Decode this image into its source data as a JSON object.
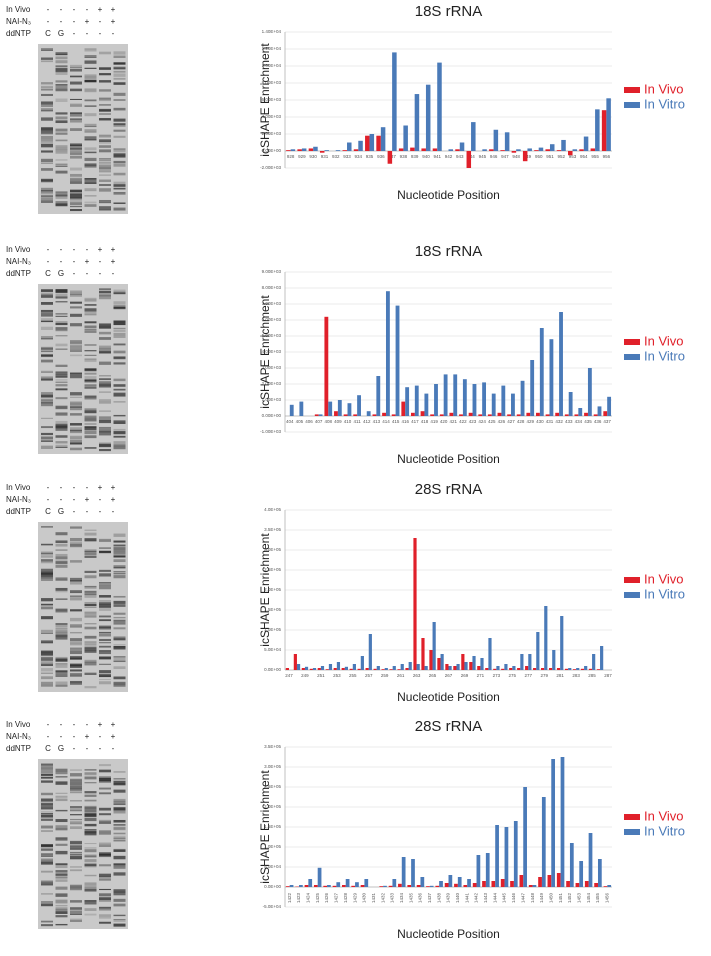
{
  "chart_data": [
    {
      "type": "bar",
      "title": "18S rRNA",
      "x_label": "Nucleotide Position",
      "y_label": "icSHAPE Enrichment",
      "legend": "right",
      "grid": true,
      "categories": [
        "928",
        "929",
        "930",
        "931",
        "932",
        "933",
        "934",
        "935",
        "936",
        "937",
        "938",
        "939",
        "940",
        "941",
        "942",
        "943",
        "944",
        "945",
        "946",
        "947",
        "948",
        "949",
        "950",
        "951",
        "952",
        "953",
        "954",
        "955",
        "956"
      ],
      "series": [
        {
          "name": "In Vivo",
          "color": "#e0202a",
          "values": [
            100,
            200,
            300,
            -200,
            0,
            100,
            200,
            1800,
            1800,
            -1500,
            300,
            400,
            300,
            300,
            0,
            200,
            -2000,
            0,
            200,
            100,
            -200,
            -1200,
            100,
            200,
            100,
            -500,
            200,
            300,
            4800
          ]
        },
        {
          "name": "In Vitro",
          "color": "#4a7ab8",
          "values": [
            200,
            300,
            500,
            100,
            100,
            1000,
            1200,
            2000,
            2800,
            11600,
            3000,
            6700,
            7800,
            10400,
            200,
            1000,
            3400,
            200,
            2500,
            2200,
            200,
            300,
            400,
            800,
            1300,
            200,
            1700,
            4900,
            6200
          ]
        }
      ],
      "ylim": [
        -2000,
        14000
      ],
      "yticks": [
        {
          "value": -2000,
          "label": "-2.00E+03"
        },
        {
          "value": 0,
          "label": "0.00E+00"
        },
        {
          "value": 2000,
          "label": "2.00E+03"
        },
        {
          "value": 4000,
          "label": "4.00E+03"
        },
        {
          "value": 6000,
          "label": "6.00E+03"
        },
        {
          "value": 8000,
          "label": "8.00E+03"
        },
        {
          "value": 10000,
          "label": "1.00E+04"
        },
        {
          "value": 12000,
          "label": "1.20E+04"
        },
        {
          "value": 14000,
          "label": "1.40E+04"
        }
      ]
    },
    {
      "type": "bar",
      "title": "18S rRNA",
      "x_label": "Nucleotide Position",
      "y_label": "icSHAPE Enrichment",
      "legend": "right",
      "grid": true,
      "categories": [
        "404",
        "405",
        "406",
        "407",
        "408",
        "409",
        "410",
        "411",
        "412",
        "413",
        "414",
        "415",
        "416",
        "417",
        "418",
        "419",
        "420",
        "421",
        "422",
        "423",
        "424",
        "425",
        "426",
        "427",
        "428",
        "429",
        "430",
        "431",
        "432",
        "433",
        "434",
        "435",
        "436",
        "437"
      ],
      "series": [
        {
          "name": "In Vivo",
          "color": "#e0202a",
          "values": [
            0,
            0,
            0,
            100,
            6200,
            300,
            100,
            100,
            0,
            100,
            200,
            100,
            900,
            200,
            300,
            100,
            100,
            200,
            100,
            200,
            100,
            100,
            200,
            100,
            100,
            200,
            200,
            100,
            200,
            100,
            100,
            200,
            100,
            300
          ]
        },
        {
          "name": "In Vitro",
          "color": "#4a7ab8",
          "values": [
            700,
            900,
            0,
            100,
            900,
            1000,
            800,
            1300,
            300,
            2500,
            7800,
            6900,
            1800,
            1900,
            1400,
            2000,
            2600,
            2600,
            2300,
            2000,
            2100,
            1400,
            1900,
            1400,
            2200,
            3500,
            5500,
            4800,
            6500,
            1500,
            500,
            3000,
            600,
            1200
          ]
        }
      ],
      "ylim": [
        -1000,
        9000
      ],
      "yticks": [
        {
          "value": -1000,
          "label": "-1.00E+03"
        },
        {
          "value": 0,
          "label": "0.00E+00"
        },
        {
          "value": 1000,
          "label": "1.00E+03"
        },
        {
          "value": 2000,
          "label": "2.00E+03"
        },
        {
          "value": 3000,
          "label": "3.00E+03"
        },
        {
          "value": 4000,
          "label": "4.00E+03"
        },
        {
          "value": 5000,
          "label": "5.00E+03"
        },
        {
          "value": 6000,
          "label": "6.00E+03"
        },
        {
          "value": 7000,
          "label": "7.00E+03"
        },
        {
          "value": 8000,
          "label": "8.00E+03"
        },
        {
          "value": 9000,
          "label": "9.00E+03"
        }
      ]
    },
    {
      "type": "bar",
      "title": "28S rRNA",
      "x_label": "Nucleotide Position",
      "y_label": "icSHAPE Enrichment",
      "legend": "right",
      "grid": true,
      "categories": [
        "247",
        null,
        "249",
        null,
        "251",
        null,
        "253",
        null,
        "255",
        null,
        "257",
        null,
        "259",
        null,
        "261",
        null,
        "263",
        null,
        "265",
        null,
        "267",
        null,
        "269",
        null,
        "271",
        null,
        "273",
        null,
        "275",
        null,
        "277",
        null,
        "279",
        null,
        "281",
        null,
        "283",
        null,
        "285",
        null,
        "287"
      ],
      "series": [
        {
          "name": "In Vivo",
          "color": "#e0202a",
          "values": [
            5000,
            40000,
            5000,
            3000,
            5000,
            2000,
            5000,
            5000,
            3000,
            3000,
            5000,
            3000,
            2000,
            2000,
            2000,
            5000,
            330000,
            80000,
            50000,
            30000,
            15000,
            10000,
            40000,
            20000,
            10000,
            5000,
            3000,
            3000,
            5000,
            5000,
            10000,
            5000,
            5000,
            5000,
            5000,
            3000,
            2000,
            3000,
            3000,
            2000,
            0
          ]
        },
        {
          "name": "In Vitro",
          "color": "#4a7ab8",
          "values": [
            0,
            15000,
            8000,
            5000,
            10000,
            15000,
            20000,
            8000,
            15000,
            35000,
            90000,
            10000,
            5000,
            10000,
            15000,
            20000,
            15000,
            10000,
            120000,
            40000,
            10000,
            15000,
            20000,
            35000,
            30000,
            80000,
            10000,
            15000,
            10000,
            40000,
            40000,
            95000,
            160000,
            50000,
            135000,
            5000,
            5000,
            10000,
            40000,
            60000,
            0
          ]
        }
      ],
      "ylim": [
        0,
        400000
      ],
      "yticks": [
        {
          "value": 0,
          "label": "0.0E+00"
        },
        {
          "value": 50000,
          "label": "5.0E+04"
        },
        {
          "value": 100000,
          "label": "1.0E+05"
        },
        {
          "value": 150000,
          "label": "1.5E+05"
        },
        {
          "value": 200000,
          "label": "2.0E+05"
        },
        {
          "value": 250000,
          "label": "2.5E+05"
        },
        {
          "value": 300000,
          "label": "3.0E+05"
        },
        {
          "value": 350000,
          "label": "3.5E+05"
        },
        {
          "value": 400000,
          "label": "4.0E+05"
        }
      ]
    },
    {
      "type": "bar",
      "title": "28S rRNA",
      "x_label": "Nucleotide Position",
      "y_label": "icSHAPE Enrichment",
      "legend": "right",
      "grid": true,
      "x_labels_vertical": true,
      "categories": [
        "1422",
        "1423",
        "1424",
        "1425",
        "1426",
        "1427",
        "1428",
        "1429",
        "1430",
        "1431",
        "1432",
        "1433",
        "1434",
        "1435",
        "1436",
        "1437",
        "1438",
        "1439",
        "1440",
        "1441",
        "1442",
        "1443",
        "1444",
        "1445",
        "1446",
        "1447",
        "1448",
        "1449",
        "1450",
        "1451",
        "1452",
        "1453",
        "1454",
        "1455",
        "1456"
      ],
      "series": [
        {
          "name": "In Vivo",
          "color": "#e0202a",
          "values": [
            2000,
            1000,
            5000,
            5000,
            3000,
            3000,
            5000,
            3000,
            5000,
            0,
            2000,
            3000,
            8000,
            5000,
            5000,
            2000,
            3000,
            10000,
            8000,
            5000,
            10000,
            15000,
            15000,
            20000,
            15000,
            30000,
            5000,
            25000,
            30000,
            35000,
            15000,
            10000,
            15000,
            10000,
            2000
          ]
        },
        {
          "name": "In Vitro",
          "color": "#4a7ab8",
          "values": [
            5000,
            5000,
            20000,
            48000,
            5000,
            12000,
            20000,
            12000,
            20000,
            0,
            3000,
            20000,
            75000,
            70000,
            25000,
            3000,
            15000,
            30000,
            25000,
            20000,
            80000,
            85000,
            155000,
            150000,
            165000,
            250000,
            5000,
            225000,
            320000,
            325000,
            110000,
            65000,
            135000,
            70000,
            5000
          ]
        }
      ],
      "ylim": [
        -50000,
        350000
      ],
      "yticks": [
        {
          "value": -50000,
          "label": "-5.0E+04"
        },
        {
          "value": 0,
          "label": "0.0E+00"
        },
        {
          "value": 50000,
          "label": "5.0E+04"
        },
        {
          "value": 100000,
          "label": "1.0E+05"
        },
        {
          "value": 150000,
          "label": "1.5E+05"
        },
        {
          "value": 200000,
          "label": "2.0E+05"
        },
        {
          "value": 250000,
          "label": "2.5E+05"
        },
        {
          "value": 300000,
          "label": "3.0E+05"
        },
        {
          "value": 350000,
          "label": "3.5E+05"
        }
      ]
    }
  ],
  "gels": [
    {
      "rows": [
        {
          "label": "In Vivo",
          "marks": [
            "-",
            "-",
            "-",
            "-",
            "+",
            "+"
          ]
        },
        {
          "label": "NAI-N₃",
          "marks": [
            "-",
            "-",
            "-",
            "+",
            "-",
            "+"
          ]
        },
        {
          "label": "ddNTP",
          "marks": [
            "C",
            "G",
            "-",
            "-",
            "-",
            "-"
          ]
        }
      ]
    },
    {
      "rows": [
        {
          "label": "In Vivo",
          "marks": [
            "-",
            "-",
            "-",
            "-",
            "+",
            "+"
          ]
        },
        {
          "label": "NAI-N₃",
          "marks": [
            "-",
            "-",
            "-",
            "+",
            "-",
            "+"
          ]
        },
        {
          "label": "ddNTP",
          "marks": [
            "C",
            "G",
            "-",
            "-",
            "-",
            "-"
          ]
        }
      ]
    },
    {
      "rows": [
        {
          "label": "In Vivo",
          "marks": [
            "-",
            "-",
            "-",
            "-",
            "+",
            "+"
          ]
        },
        {
          "label": "NAI-N₃",
          "marks": [
            "-",
            "-",
            "-",
            "+",
            "-",
            "+"
          ]
        },
        {
          "label": "ddNTP",
          "marks": [
            "C",
            "G",
            "-",
            "-",
            "-",
            "-"
          ]
        }
      ]
    },
    {
      "rows": [
        {
          "label": "In Vivo",
          "marks": [
            "-",
            "-",
            "-",
            "-",
            "+",
            "+"
          ]
        },
        {
          "label": "NAI-N₃",
          "marks": [
            "-",
            "-",
            "-",
            "+",
            "-",
            "+"
          ]
        },
        {
          "label": "ddNTP",
          "marks": [
            "C",
            "G",
            "-",
            "-",
            "-",
            "-"
          ]
        }
      ]
    }
  ]
}
